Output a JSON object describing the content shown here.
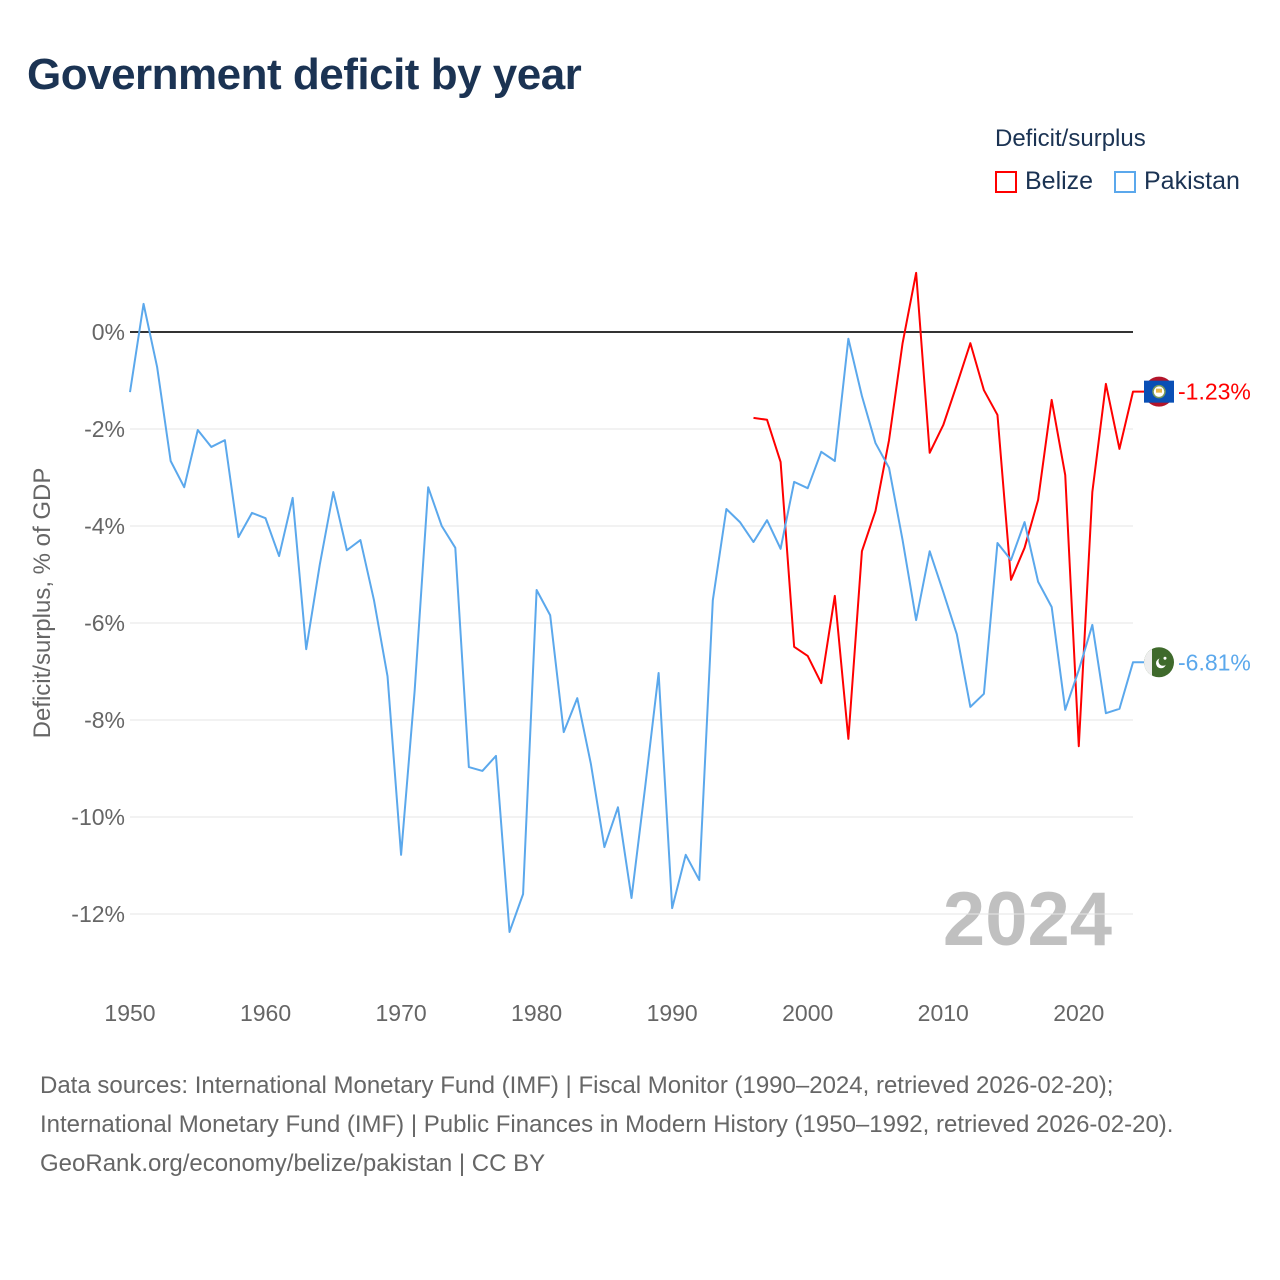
{
  "title": "Government deficit by year",
  "legend": {
    "title": "Deficit/surplus",
    "items": [
      {
        "name": "Belize",
        "color": "#ff0000"
      },
      {
        "name": "Pakistan",
        "color": "#5ba8ec"
      }
    ]
  },
  "footer": {
    "sources": "Data sources: International Monetary Fund (IMF) | Fiscal Monitor (1990–2024, retrieved 2026-02-20); International Monetary Fund (IMF) | Public Finances in Modern History (1950–1992, retrieved 2026-02-20).",
    "credit": "GeoRank.org/economy/belize/pakistan | CC BY"
  },
  "chart_data": {
    "type": "line",
    "title": "Government deficit by year",
    "ylabel": "Deficit/surplus, % of GDP",
    "xlabel": "",
    "xlim": [
      1950,
      2024
    ],
    "ylim": [
      -13.5,
      1.5
    ],
    "x_ticks": [
      1950,
      1960,
      1970,
      1980,
      1990,
      2000,
      2010,
      2020
    ],
    "y_ticks": [
      0,
      -2,
      -4,
      -6,
      -8,
      -10,
      -12
    ],
    "y_tick_labels": [
      "0%",
      "-2%",
      "-4%",
      "-6%",
      "-8%",
      "-10%",
      "-12%"
    ],
    "grid": true,
    "year_label": "2024",
    "series": [
      {
        "name": "Belize",
        "color": "#ff0000",
        "end_label": "-1.23%",
        "start_year": 1996,
        "values": [
          -1.77,
          -1.81,
          -2.68,
          -6.49,
          -6.68,
          -7.24,
          -5.44,
          -8.39,
          -4.52,
          -3.69,
          -2.23,
          -0.23,
          1.22,
          -2.49,
          -1.92,
          -1.09,
          -0.23,
          -1.2,
          -1.71,
          -5.11,
          -4.45,
          -3.46,
          -1.4,
          -2.95,
          -8.54,
          -3.3,
          -1.07,
          -2.41,
          -1.23
        ]
      },
      {
        "name": "Pakistan",
        "color": "#5ba8ec",
        "end_label": "-6.81%",
        "start_year": 1950,
        "values": [
          -1.24,
          0.58,
          -0.72,
          -2.66,
          -3.2,
          -2.02,
          -2.37,
          -2.23,
          -4.23,
          -3.73,
          -3.84,
          -4.62,
          -3.42,
          -6.54,
          -4.8,
          -3.3,
          -4.5,
          -4.29,
          -5.53,
          -7.1,
          -10.78,
          -7.4,
          -3.2,
          -4.0,
          -4.45,
          -8.97,
          -9.05,
          -8.74,
          -12.37,
          -11.59,
          -5.32,
          -5.84,
          -8.25,
          -7.55,
          -8.9,
          -10.62,
          -9.8,
          -11.67,
          -9.4,
          -7.03,
          -11.88,
          -10.78,
          -11.3,
          -5.53,
          -3.65,
          -3.92,
          -4.33,
          -3.88,
          -4.47,
          -3.09,
          -3.22,
          -2.47,
          -2.66,
          -0.14,
          -1.32,
          -2.29,
          -2.8,
          -4.29,
          -5.94,
          -4.52,
          -5.36,
          -6.23,
          -7.73,
          -7.46,
          -4.35,
          -4.7,
          -3.92,
          -5.15,
          -5.67,
          -7.79,
          -6.97,
          -6.04,
          -7.86,
          -7.77,
          -6.81
        ]
      }
    ]
  }
}
